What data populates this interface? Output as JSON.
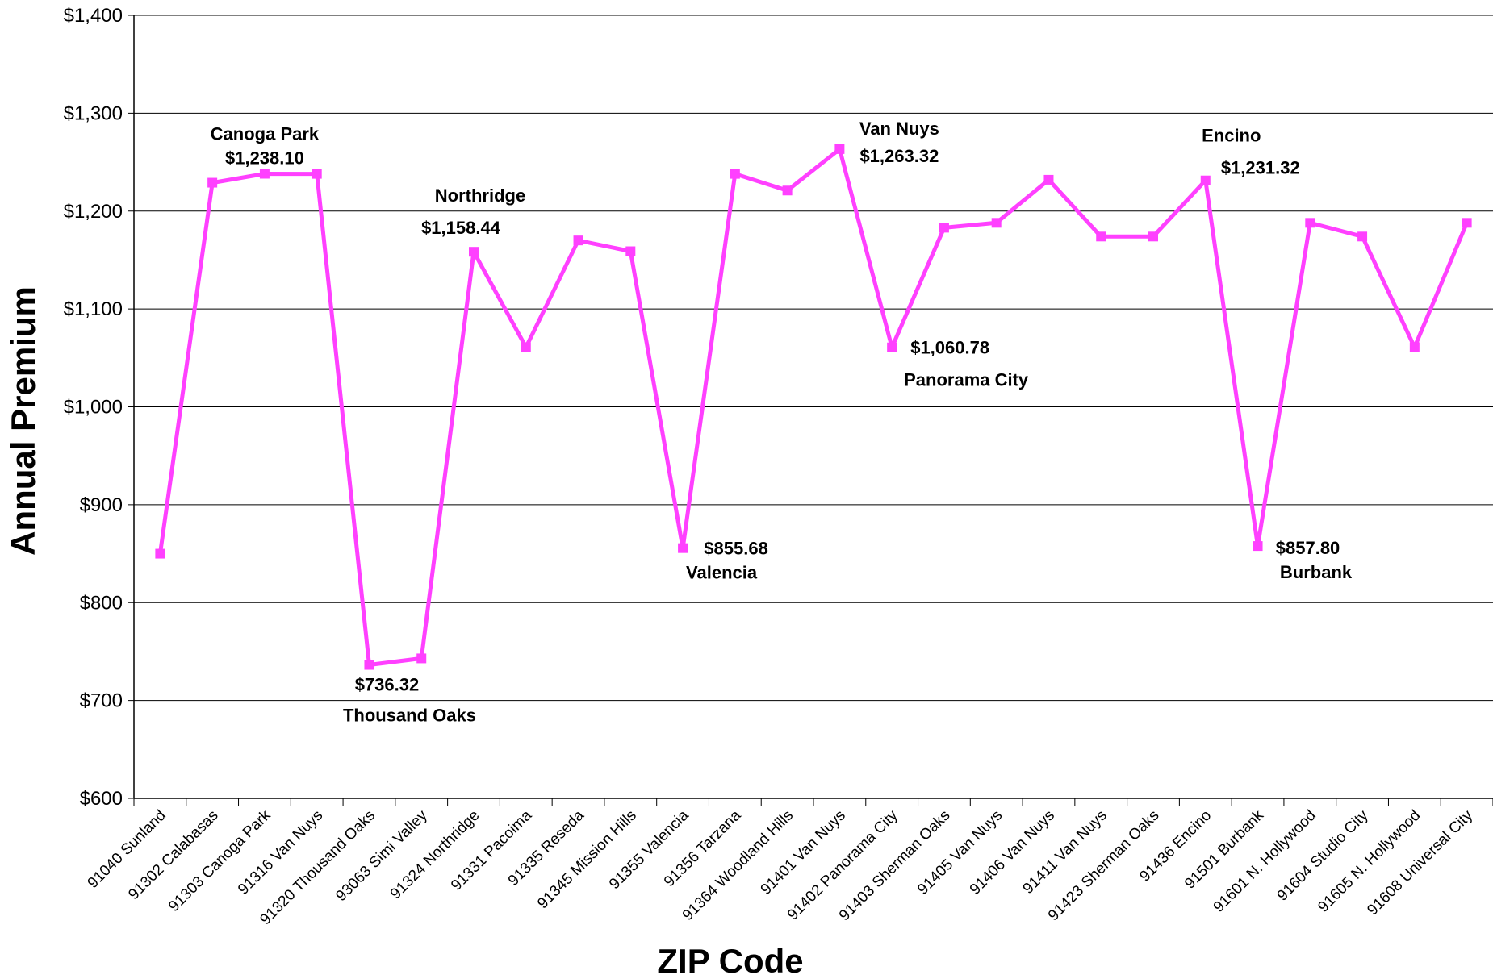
{
  "chart_data": {
    "type": "line",
    "title": "",
    "xlabel": "ZIP Code",
    "ylabel": "Annual Premium",
    "ylim": [
      600,
      1400
    ],
    "y_ticks": [
      600,
      700,
      800,
      900,
      1000,
      1100,
      1200,
      1300,
      1400
    ],
    "y_tick_labels": [
      "$600",
      "$700",
      "$800",
      "$900",
      "$1,000",
      "$1,100",
      "$1,200",
      "$1,300",
      "$1,400"
    ],
    "grid": "horizontal",
    "line_color": "#ff40ff",
    "categories": [
      "91040 Sunland",
      "91302 Calabasas",
      "91303 Canoga Park",
      "91316 Van Nuys",
      "91320 Thousand Oaks",
      "93063 Simi Valley",
      "91324 Northridge",
      "91331 Pacoima",
      "91335 Reseda",
      "91345 Mission Hills",
      "91355 Valencia",
      "91356 Tarzana",
      "91364 Woodland Hills",
      "91401 Van Nuys",
      "91402 Panorama City",
      "91403 Sherman Oaks",
      "91405 Van Nuys",
      "91406 Van Nuys",
      "91411 Van Nuys",
      "91423 Sherman Oaks",
      "91436 Encino",
      "91501 Burbank",
      "91601 N. Hollywood",
      "91604 Studio City",
      "91605 N. Hollywood",
      "91608 Universal City"
    ],
    "series": [
      {
        "name": "",
        "values": [
          850,
          1229,
          1238.1,
          1238,
          736.32,
          743,
          1158.44,
          1061,
          1170,
          1159,
          855.68,
          1238,
          1221,
          1263.32,
          1060.78,
          1183,
          1188,
          1232,
          1174,
          1174,
          1231.32,
          857.8,
          1188,
          1174,
          1061,
          1188
        ]
      }
    ],
    "annotations": [
      {
        "index": 2,
        "name": "Canoga Park",
        "value": "$1,238.10"
      },
      {
        "index": 4,
        "name": "Thousand Oaks",
        "value": "$736.32"
      },
      {
        "index": 6,
        "name": "Northridge",
        "value": "$1,158.44"
      },
      {
        "index": 10,
        "name": "Valencia",
        "value": "$855.68"
      },
      {
        "index": 13,
        "name": "Van Nuys",
        "value": "$1,263.32"
      },
      {
        "index": 14,
        "name": "Panorama City",
        "value": "$1,060.78"
      },
      {
        "index": 20,
        "name": "Encino",
        "value": "$1,231.32"
      },
      {
        "index": 21,
        "name": "Burbank",
        "value": "$857.80"
      }
    ]
  }
}
